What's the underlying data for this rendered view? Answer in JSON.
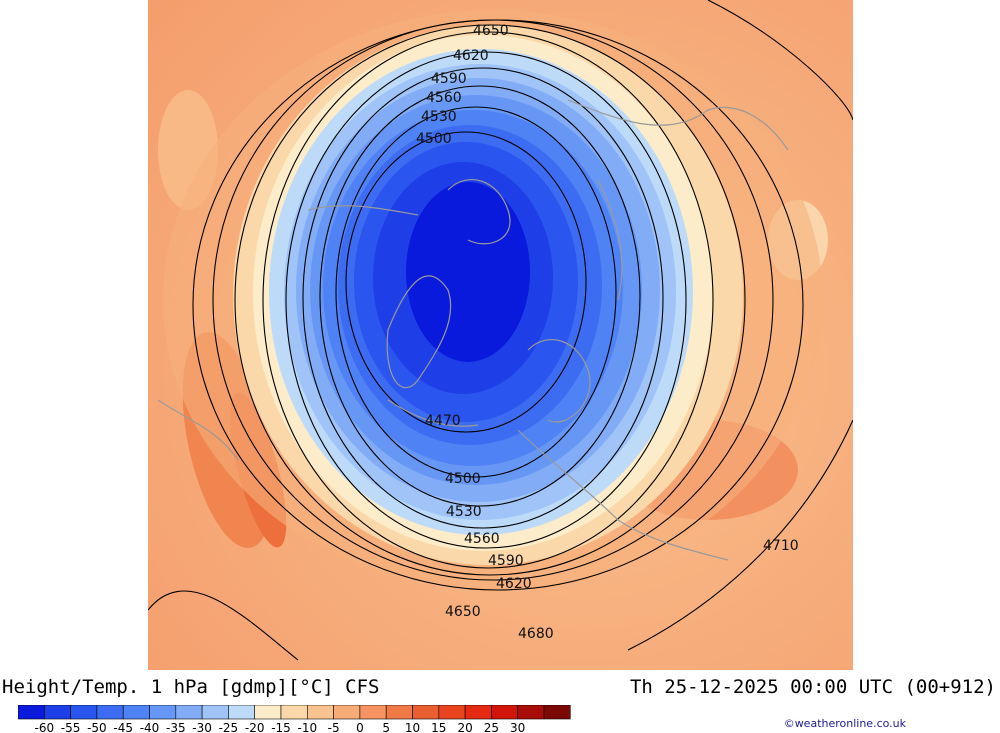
{
  "title": "Height/Temp. 1 hPa [gdmp][°C] CFS",
  "valid_time": "Th 25-12-2025 00:00 UTC (00+912)",
  "credit": "©weatheronline.co.uk",
  "contour_labels": [
    "4650",
    "4620",
    "4590",
    "4560",
    "4530",
    "4500",
    "4470",
    "4500",
    "4530",
    "4560",
    "4590",
    "4620",
    "4650",
    "4680",
    "4710"
  ],
  "colorbar": {
    "colors": [
      "#0a1adc",
      "#1e3ee8",
      "#2b55ef",
      "#3c6cf2",
      "#4f82f4",
      "#6797f5",
      "#83acf7",
      "#a0c4f8",
      "#bddaf9",
      "#fcecc9",
      "#fbd8a9",
      "#f9c290",
      "#f7ac77",
      "#f59460",
      "#f07a46",
      "#ea5f2f",
      "#e8441e",
      "#e42a12",
      "#d11508",
      "#a80c06",
      "#7a0806"
    ],
    "labels": [
      "-60",
      "-55",
      "-50",
      "-45",
      "-40",
      "-35",
      "-30",
      "-25",
      "-20",
      "-15",
      "-10",
      "-5",
      "0",
      "5",
      "10",
      "15",
      "20",
      "25",
      "30"
    ]
  }
}
